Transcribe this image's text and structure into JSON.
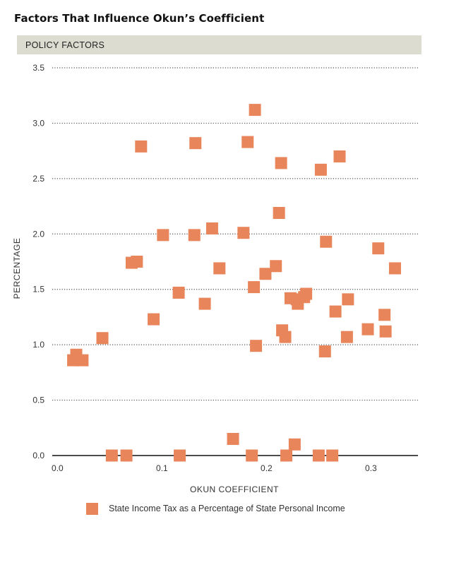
{
  "page": {
    "title": "Factors That Influence Okun’s Coefficient",
    "section_label": "POLICY FACTORS"
  },
  "colors": {
    "marker": "#e8855a",
    "band": "#dcdcd0"
  },
  "chart_data": {
    "type": "scatter",
    "title": "",
    "xlabel": "OKUN COEFFICIENT",
    "ylabel": "PERCENTAGE",
    "xlim": [
      -0.005,
      0.345
    ],
    "ylim": [
      0,
      3.5
    ],
    "x_ticks": [
      0.0,
      0.1,
      0.2,
      0.3
    ],
    "x_tick_labels": [
      "0.0",
      "0.1",
      "0.2",
      "0.3"
    ],
    "y_ticks": [
      0.0,
      0.5,
      1.0,
      1.5,
      2.0,
      2.5,
      3.0,
      3.5
    ],
    "y_tick_labels": [
      "0.0",
      "0.5",
      "1.0",
      "1.5",
      "2.0",
      "2.5",
      "3.0",
      "3.5"
    ],
    "grid": "horizontal dotted",
    "legend_position": "bottom",
    "series": [
      {
        "name": "State Income Tax as a Percentage of State Personal Income",
        "color": "#e8855a",
        "points": [
          [
            0.015,
            0.86
          ],
          [
            0.018,
            0.91
          ],
          [
            0.024,
            0.86
          ],
          [
            0.043,
            1.06
          ],
          [
            0.052,
            0.0
          ],
          [
            0.066,
            0.0
          ],
          [
            0.071,
            1.74
          ],
          [
            0.076,
            1.75
          ],
          [
            0.08,
            2.79
          ],
          [
            0.092,
            1.23
          ],
          [
            0.101,
            1.99
          ],
          [
            0.116,
            1.47
          ],
          [
            0.117,
            0.0
          ],
          [
            0.131,
            1.99
          ],
          [
            0.132,
            2.82
          ],
          [
            0.141,
            1.37
          ],
          [
            0.148,
            2.05
          ],
          [
            0.155,
            1.69
          ],
          [
            0.168,
            0.15
          ],
          [
            0.178,
            2.01
          ],
          [
            0.182,
            2.83
          ],
          [
            0.186,
            0.0
          ],
          [
            0.188,
            1.52
          ],
          [
            0.189,
            3.12
          ],
          [
            0.19,
            0.99
          ],
          [
            0.199,
            1.64
          ],
          [
            0.209,
            1.71
          ],
          [
            0.212,
            2.19
          ],
          [
            0.214,
            2.64
          ],
          [
            0.215,
            1.13
          ],
          [
            0.218,
            1.07
          ],
          [
            0.219,
            0.0
          ],
          [
            0.223,
            1.42
          ],
          [
            0.227,
            0.1
          ],
          [
            0.229,
            1.41
          ],
          [
            0.23,
            1.37
          ],
          [
            0.236,
            1.43
          ],
          [
            0.238,
            1.46
          ],
          [
            0.25,
            0.0
          ],
          [
            0.252,
            2.58
          ],
          [
            0.256,
            0.94
          ],
          [
            0.257,
            1.93
          ],
          [
            0.263,
            0.0
          ],
          [
            0.266,
            1.3
          ],
          [
            0.27,
            2.7
          ],
          [
            0.277,
            1.07
          ],
          [
            0.278,
            1.41
          ],
          [
            0.297,
            1.14
          ],
          [
            0.307,
            1.87
          ],
          [
            0.313,
            1.27
          ],
          [
            0.314,
            1.12
          ],
          [
            0.323,
            1.69
          ]
        ]
      }
    ]
  }
}
